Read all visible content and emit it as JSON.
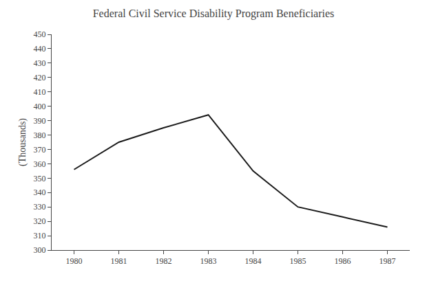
{
  "chart_data": {
    "type": "line",
    "title": "Federal Civil Service Disability Program Beneficiaries",
    "ylabel": "(Thousands)",
    "x": [
      1980,
      1981,
      1982,
      1983,
      1984,
      1985,
      1986,
      1987
    ],
    "values": [
      356,
      375,
      385,
      394,
      355,
      330,
      323,
      316
    ],
    "color": "#1a1a1a",
    "xlim": [
      1979.5,
      1987.5
    ],
    "ylim": [
      300,
      450
    ],
    "xticks": [
      1980,
      1981,
      1982,
      1983,
      1984,
      1985,
      1986,
      1987
    ],
    "yticks": [
      300,
      310,
      320,
      330,
      340,
      350,
      360,
      370,
      380,
      390,
      400,
      410,
      420,
      430,
      440,
      450
    ],
    "grid": false
  }
}
